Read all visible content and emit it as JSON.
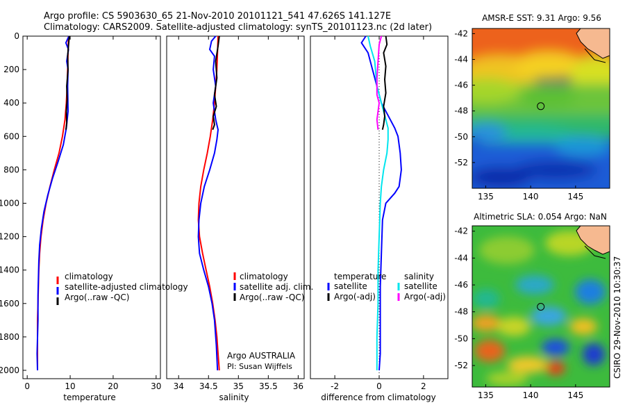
{
  "header": {
    "line1": "Argo profile: CS 5903630_65 21-Nov-2010 20101121_541 47.626S 141.127E",
    "line2": "Climatology: CARS2009. Satellite-adjusted climatology: synTS_20101123.nc (2d later)"
  },
  "side_label": "CSIRO 29-Nov-2010 10:30:37",
  "colors": {
    "climatology": "#ff0000",
    "satellite": "#0000ff",
    "argo": "#000000",
    "sal_satellite": "#00e5ee",
    "sal_argo": "#ff00ff"
  },
  "chart_data": [
    {
      "type": "line",
      "xlabel": "temperature",
      "xlim": [
        -1,
        31
      ],
      "ylim": [
        0,
        2050
      ],
      "yreversed": true,
      "xticks": [
        "0",
        "10",
        "20",
        "30"
      ],
      "yticks": [
        "0",
        "200",
        "400",
        "600",
        "800",
        "1000",
        "1200",
        "1400",
        "1600",
        "1800",
        "2000"
      ],
      "legend": [
        "climatology",
        "satellite-adjusted climatology",
        "Argo(..raw -QC)"
      ],
      "legend_colors": [
        "#ff0000",
        "#0000ff",
        "#000000"
      ],
      "series": [
        {
          "name": "climatology",
          "color": "#ff0000",
          "x": [
            9.6,
            9.5,
            9.4,
            9.3,
            9.1,
            8.8,
            8.2,
            7.4,
            6.3,
            5.3,
            4.4,
            3.7,
            3.2,
            2.9,
            2.7,
            2.6,
            2.5,
            2.4,
            2.4,
            2.4
          ],
          "y": [
            0,
            100,
            200,
            300,
            400,
            500,
            600,
            700,
            800,
            900,
            1000,
            1100,
            1200,
            1300,
            1400,
            1500,
            1600,
            1700,
            1900,
            2000
          ]
        },
        {
          "name": "satellite-adjusted climatology",
          "color": "#0000ff",
          "x": [
            9.7,
            9.0,
            9.6,
            9.2,
            9.5,
            9.4,
            9.5,
            9.1,
            8.4,
            7.2,
            5.9,
            4.8,
            3.9,
            3.3,
            2.9,
            2.7,
            2.6,
            2.5,
            2.5,
            2.3,
            2.4
          ],
          "y": [
            0,
            40,
            80,
            150,
            200,
            300,
            450,
            550,
            650,
            750,
            850,
            950,
            1050,
            1150,
            1250,
            1350,
            1450,
            1550,
            1700,
            1900,
            2000
          ]
        },
        {
          "name": "Argo(..raw -QC)",
          "color": "#000000",
          "x": [
            9.8,
            9.6,
            9.4,
            9.5,
            9.2,
            9.3,
            9.1,
            9.2,
            9.0
          ],
          "y": [
            0,
            60,
            120,
            200,
            300,
            380,
            450,
            520,
            560
          ]
        }
      ]
    },
    {
      "type": "line",
      "xlabel": "salinity",
      "xlim": [
        33.8,
        36.1
      ],
      "ylim": [
        0,
        2050
      ],
      "yreversed": true,
      "xticks": [
        "34",
        "34.5",
        "35",
        "35.5",
        "36"
      ],
      "legend": [
        "climatology",
        "satellite adj. clim.",
        "Argo(..raw -QC)"
      ],
      "legend_colors": [
        "#ff0000",
        "#0000ff",
        "#000000"
      ],
      "annotation": [
        "Argo AUSTRALIA",
        "PI: Susan Wijffels"
      ],
      "series": [
        {
          "name": "climatology",
          "color": "#ff0000",
          "x": [
            34.66,
            34.65,
            34.64,
            34.62,
            34.6,
            34.57,
            34.53,
            34.48,
            34.42,
            34.37,
            34.34,
            34.33,
            34.35,
            34.4,
            34.46,
            34.52,
            34.57,
            34.61,
            34.64,
            34.66,
            34.68
          ],
          "y": [
            0,
            100,
            200,
            300,
            400,
            500,
            600,
            700,
            800,
            900,
            1000,
            1100,
            1200,
            1300,
            1400,
            1500,
            1600,
            1700,
            1800,
            1900,
            2000
          ]
        },
        {
          "name": "satellite adj. clim.",
          "color": "#0000ff",
          "x": [
            34.62,
            34.55,
            34.52,
            34.6,
            34.58,
            34.62,
            34.58,
            34.62,
            34.66,
            34.64,
            34.6,
            34.52,
            34.43,
            34.37,
            34.34,
            34.33,
            34.35,
            34.42,
            34.5,
            34.56,
            34.6,
            34.63,
            34.65
          ],
          "y": [
            0,
            30,
            80,
            120,
            200,
            300,
            400,
            500,
            560,
            620,
            700,
            800,
            900,
            1000,
            1100,
            1200,
            1300,
            1400,
            1500,
            1600,
            1700,
            1850,
            2000
          ]
        },
        {
          "name": "Argo(..raw -QC)",
          "color": "#000000",
          "x": [
            34.68,
            34.66,
            34.62,
            34.64,
            34.6,
            34.63,
            34.58,
            34.6,
            34.57
          ],
          "y": [
            0,
            60,
            150,
            250,
            350,
            420,
            480,
            530,
            560
          ]
        }
      ]
    },
    {
      "type": "line",
      "xlabel": "difference from climatology",
      "xlim": [
        -3.1,
        3.1
      ],
      "ylim": [
        0,
        2050
      ],
      "yreversed": true,
      "xticks": [
        "-2",
        "0",
        "2"
      ],
      "legend_left": [
        "temperature",
        "satellite",
        "Argo(-adj)"
      ],
      "legend_left_colors": [
        "#000000",
        "#0000ff",
        "#000000"
      ],
      "legend_right": [
        "salinity",
        "satellite",
        "Argo(-adj)"
      ],
      "legend_right_colors": [
        "#000000",
        "#00e5ee",
        "#ff00ff"
      ],
      "series": [
        {
          "name": "temperature satellite",
          "color": "#0000ff",
          "x": [
            -0.6,
            -0.8,
            -0.5,
            -0.3,
            -0.1,
            0.1,
            0.3,
            0.5,
            0.7,
            0.85,
            0.9,
            0.95,
            1.0,
            0.9,
            0.7,
            0.5,
            0.3,
            0.15,
            0.1,
            0.05,
            0.05,
            0.05,
            0.0
          ],
          "y": [
            0,
            40,
            100,
            200,
            300,
            400,
            450,
            500,
            550,
            600,
            650,
            700,
            800,
            900,
            940,
            970,
            1000,
            1100,
            1300,
            1500,
            1700,
            1900,
            2000
          ]
        },
        {
          "name": "salinity satellite",
          "color": "#00e5ee",
          "x": [
            -0.5,
            -0.4,
            -0.2,
            -0.1,
            0.2,
            0.4,
            0.4,
            0.35,
            0.2,
            0.1,
            0.05,
            0.0,
            -0.05,
            -0.05,
            -0.1,
            -0.1,
            -0.1
          ],
          "y": [
            0,
            60,
            150,
            300,
            450,
            550,
            620,
            700,
            800,
            900,
            1000,
            1200,
            1400,
            1600,
            1800,
            1900,
            2000
          ]
        },
        {
          "name": "temperature Argo(-adj)",
          "color": "#000000",
          "x": [
            0.3,
            0.35,
            0.2,
            0.3,
            0.25,
            0.3,
            0.2,
            0.25,
            0.2,
            0.15
          ],
          "y": [
            0,
            50,
            100,
            180,
            260,
            340,
            420,
            480,
            530,
            560
          ]
        },
        {
          "name": "salinity Argo(-adj)",
          "color": "#ff00ff",
          "x": [
            0.1,
            0.0,
            -0.05,
            -0.1,
            -0.1,
            0.0,
            -0.05,
            -0.1,
            -0.05
          ],
          "y": [
            0,
            50,
            150,
            250,
            350,
            400,
            450,
            500,
            560
          ]
        }
      ]
    },
    {
      "type": "heatmap",
      "title": "AMSR-E SST: 9.31 Argo: 9.56",
      "xticks": [
        "135",
        "140",
        "145"
      ],
      "yticks": [
        "-42",
        "-44",
        "-46",
        "-48",
        "-50",
        "-52"
      ],
      "xlim": [
        133.5,
        148.8
      ],
      "ylim": [
        -54,
        -41.6
      ],
      "marker": {
        "lon": 141.127,
        "lat": -47.626
      }
    },
    {
      "type": "heatmap",
      "title": "Altimetric SLA: 0.054 Argo: NaN",
      "xticks": [
        "135",
        "140",
        "145"
      ],
      "yticks": [
        "-42",
        "-44",
        "-46",
        "-48",
        "-50",
        "-52"
      ],
      "xlim": [
        133.5,
        148.8
      ],
      "ylim": [
        -53.6,
        -41.6
      ],
      "marker": {
        "lon": 141.127,
        "lat": -47.626
      }
    }
  ]
}
